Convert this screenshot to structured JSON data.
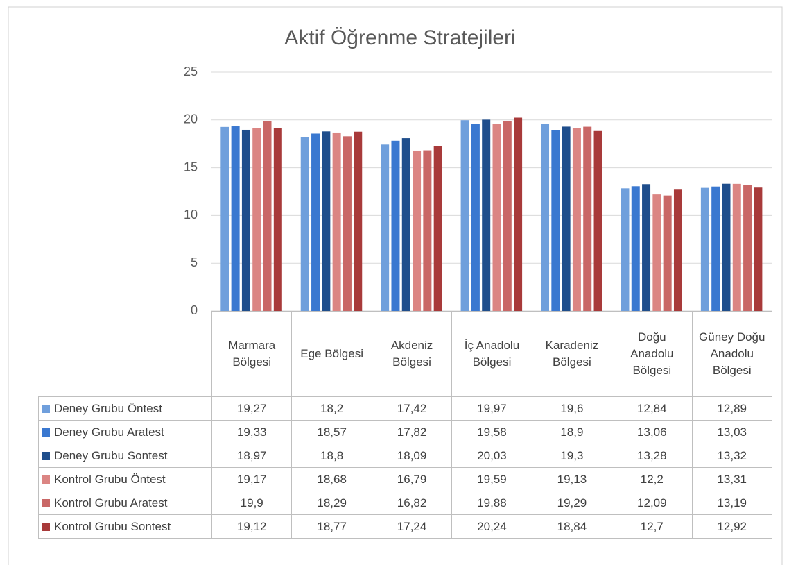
{
  "chart_data": {
    "type": "bar",
    "title": "Aktif Öğrenme Stratejileri",
    "categories": [
      "Marmara Bölgesi",
      "Ege Bölgesi",
      "Akdeniz Bölgesi",
      "İç Anadolu Bölgesi",
      "Karadeniz Bölgesi",
      "Doğu Anadolu Bölgesi",
      "Güney Doğu Anadolu Bölgesi"
    ],
    "series": [
      {
        "name": "Deney Grubu Öntest",
        "color": "#6f9fdc",
        "values": [
          19.27,
          18.2,
          17.42,
          19.97,
          19.6,
          12.84,
          12.89
        ],
        "value_labels": [
          "19,27",
          "18,2",
          "17,42",
          "19,97",
          "19,6",
          "12,84",
          "12,89"
        ]
      },
      {
        "name": "Deney Grubu Aratest",
        "color": "#3a78d0",
        "values": [
          19.33,
          18.57,
          17.82,
          19.58,
          18.9,
          13.06,
          13.03
        ],
        "value_labels": [
          "19,33",
          "18,57",
          "17,82",
          "19,58",
          "18,9",
          "13,06",
          "13,03"
        ]
      },
      {
        "name": "Deney Grubu Sontest",
        "color": "#1f4e8c",
        "values": [
          18.97,
          18.8,
          18.09,
          20.03,
          19.3,
          13.28,
          13.32
        ],
        "value_labels": [
          "18,97",
          "18,8",
          "18,09",
          "20,03",
          "19,3",
          "13,28",
          "13,32"
        ]
      },
      {
        "name": "Kontrol Grubu Öntest",
        "color": "#db8583",
        "values": [
          19.17,
          18.68,
          16.79,
          19.59,
          19.13,
          12.2,
          13.31
        ],
        "value_labels": [
          "19,17",
          "18,68",
          "16,79",
          "19,59",
          "19,13",
          "12,2",
          "13,31"
        ]
      },
      {
        "name": "Kontrol Grubu Aratest",
        "color": "#c96766",
        "values": [
          19.9,
          18.29,
          16.82,
          19.88,
          19.29,
          12.09,
          13.19
        ],
        "value_labels": [
          "19,9",
          "18,29",
          "16,82",
          "19,88",
          "19,29",
          "12,09",
          "13,19"
        ]
      },
      {
        "name": "Kontrol Grubu Sontest",
        "color": "#a83a3a",
        "values": [
          19.12,
          18.77,
          17.24,
          20.24,
          18.84,
          12.7,
          12.92
        ],
        "value_labels": [
          "19,12",
          "18,77",
          "17,24",
          "20,24",
          "18,84",
          "12,7",
          "12,92"
        ]
      }
    ],
    "ylim": [
      0,
      25
    ],
    "yticks": [
      0,
      5,
      10,
      15,
      20,
      25
    ],
    "grid": true
  }
}
